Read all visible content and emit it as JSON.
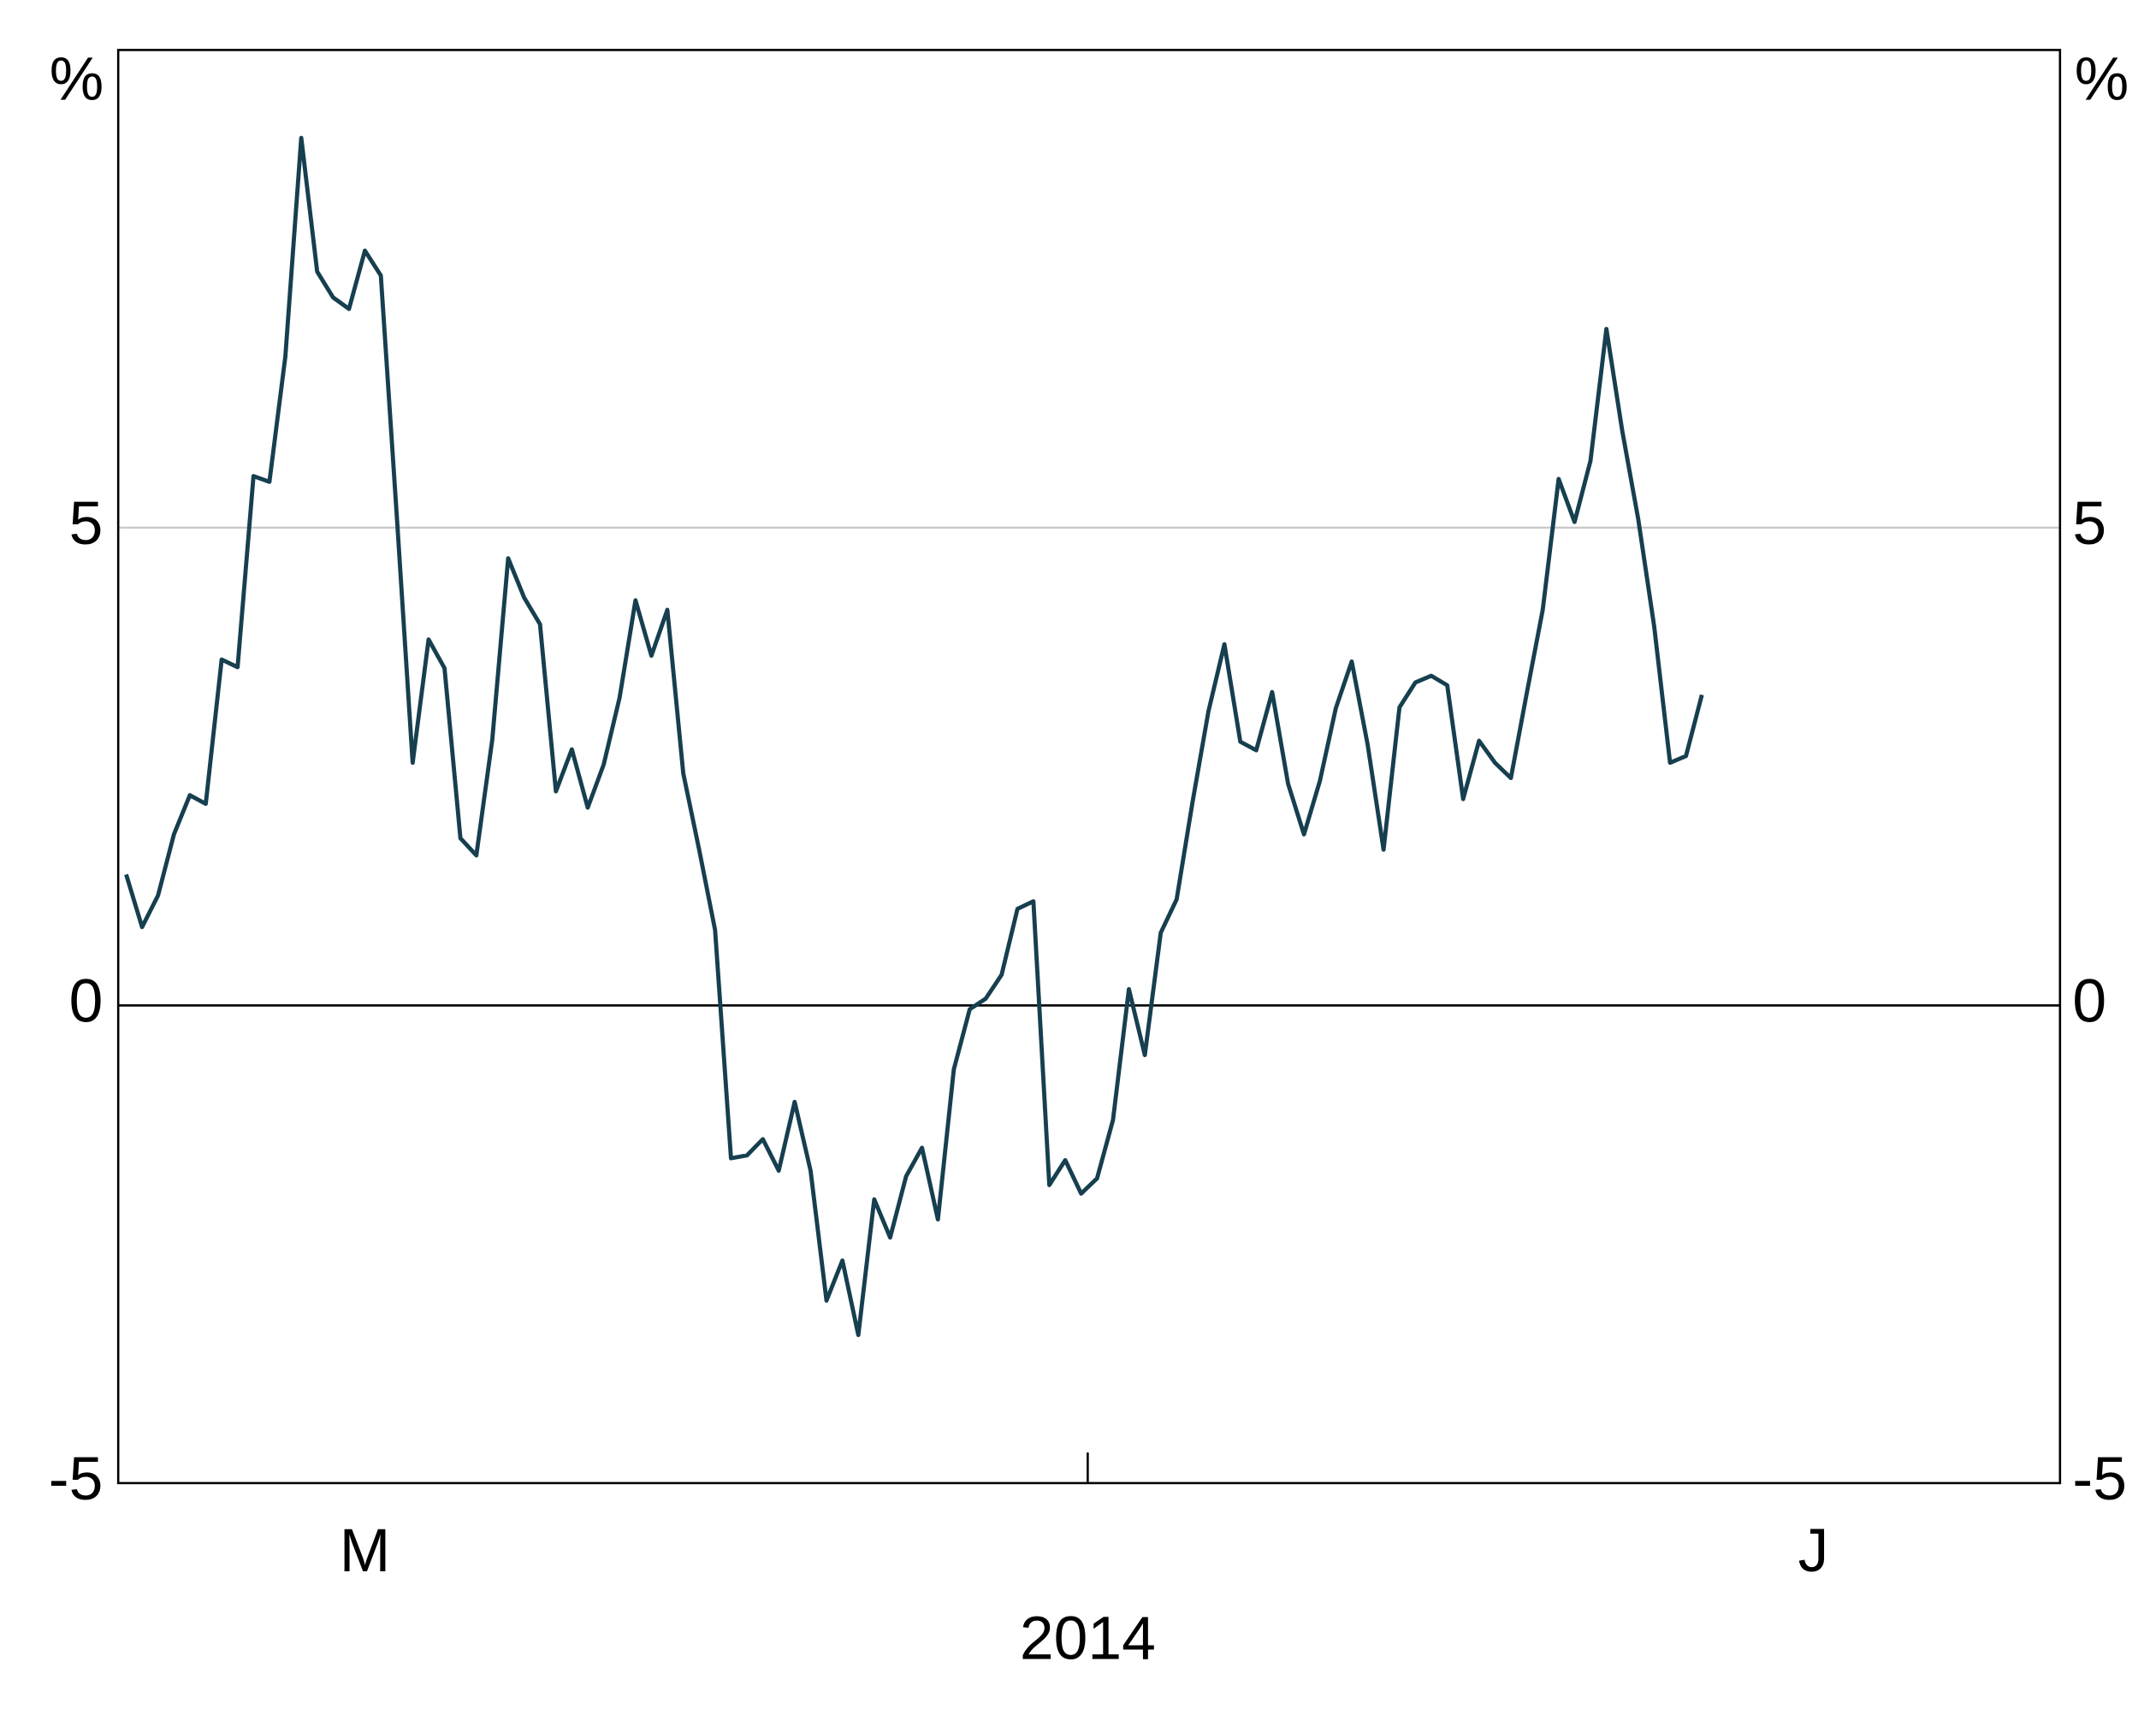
{
  "chart_data": {
    "type": "line",
    "x_label": "2014",
    "y_unit": "%",
    "y2_unit": "%",
    "categories": [
      null,
      null,
      null,
      null,
      null,
      null,
      null,
      null,
      null,
      null,
      null,
      null,
      null,
      null,
      null,
      "M",
      null,
      null,
      null,
      null,
      null,
      null,
      null,
      null,
      null,
      null,
      null,
      null,
      null,
      null,
      null,
      null,
      null,
      null,
      null,
      null,
      null,
      null,
      null,
      null,
      null,
      null,
      null,
      null,
      null,
      null,
      null,
      null,
      null,
      null,
      null,
      null,
      null,
      null,
      null,
      null,
      null,
      null,
      null,
      null,
      null,
      null,
      null,
      null,
      null,
      null,
      null,
      null,
      null,
      null,
      null,
      null,
      null,
      null,
      null,
      null,
      null,
      null,
      null,
      null,
      null,
      null,
      null,
      null,
      null,
      null,
      null,
      null,
      null,
      null,
      null,
      null,
      null,
      null,
      null,
      null,
      null,
      null,
      null,
      null,
      null,
      null,
      null,
      null,
      null,
      null,
      "J",
      null,
      null,
      null,
      null,
      null,
      null,
      null,
      null,
      null,
      null,
      null,
      null,
      null,
      null,
      null
    ],
    "series": [
      {
        "color": "#163f4f",
        "values": [
          1.37,
          0.82,
          1.15,
          1.79,
          2.2,
          2.11,
          3.62,
          3.54,
          5.54,
          5.48,
          6.79,
          9.08,
          7.68,
          7.41,
          7.29,
          7.9,
          7.64,
          5.13,
          2.54,
          3.83,
          3.53,
          1.75,
          1.57,
          2.78,
          4.68,
          4.27,
          3.99,
          2.24,
          2.68,
          2.07,
          2.52,
          3.22,
          4.24,
          3.66,
          4.14,
          2.43,
          1.63,
          0.79,
          -1.6,
          -1.57,
          -1.4,
          -1.73,
          -1.01,
          -1.73,
          -3.09,
          -2.67,
          -3.45,
          -2.03,
          -2.43,
          -1.79,
          -1.49,
          -2.24,
          -0.67,
          -0.04,
          0.07,
          0.32,
          1.01,
          1.09,
          -1.88,
          -1.62,
          -1.97,
          -1.81,
          -1.2,
          0.17,
          -0.52,
          0.76,
          1.11,
          2.13,
          3.08,
          3.78,
          2.76,
          2.67,
          3.28,
          2.32,
          1.79,
          2.35,
          3.11,
          3.6,
          2.73,
          1.63,
          3.12,
          3.38,
          3.45,
          3.35,
          2.16,
          2.77,
          2.54,
          2.38,
          3.27,
          4.14,
          5.51,
          5.06,
          5.7,
          7.08,
          6.01,
          5.09,
          3.97,
          2.54,
          2.61,
          3.25,
          null,
          null,
          null,
          null,
          null,
          null,
          null,
          null,
          null,
          null,
          null,
          null,
          null,
          null,
          null,
          null,
          null,
          null,
          null,
          null,
          null,
          null
        ]
      }
    ],
    "ylim": [
      -5,
      10
    ],
    "yticks": [
      -5,
      0,
      5
    ],
    "y2lim": [
      -5,
      10
    ],
    "y2ticks": [
      -5,
      0,
      5
    ],
    "grid": true
  }
}
